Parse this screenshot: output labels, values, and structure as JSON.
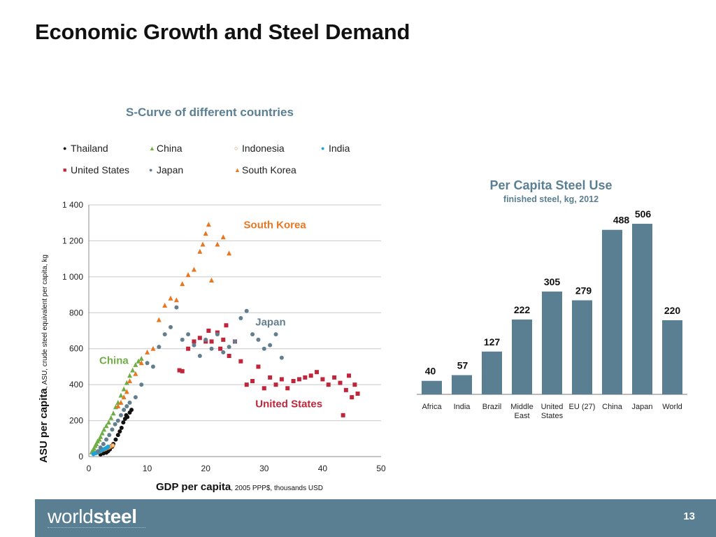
{
  "slide": {
    "title": "Economic Growth and Steel Demand",
    "page_number": "13",
    "logo": {
      "light": "world",
      "bold": "steel"
    }
  },
  "colors": {
    "slate": "#5a7f93",
    "china": "#70ad47",
    "indonesia": "#e07b2a",
    "india": "#1fa3d8",
    "us": "#c0263b",
    "japan": "#637f8f",
    "korea": "#e87722",
    "thailand": "#111111"
  },
  "chart_data": [
    {
      "type": "scatter",
      "title": "S-Curve of different countries",
      "xlabel_bold": "GDP per capita",
      "xlabel_rest": ", 2005 PPP$,  thousands USD",
      "ylabel_bold": "ASU per capita",
      "ylabel_rest": ", ASU, crude steel equivalent per capita, kg",
      "xlim": [
        0,
        50
      ],
      "ylim": [
        0,
        1400
      ],
      "xticks": [
        0,
        10,
        20,
        30,
        40,
        50
      ],
      "yticks": [
        0,
        200,
        400,
        600,
        800,
        1000,
        1200,
        1400
      ],
      "ytick_labels": [
        "0",
        "200",
        "400",
        "600",
        "800",
        "1 000",
        "1 200",
        "1 400"
      ],
      "grid": true,
      "annotations": [
        {
          "text": "South Korea",
          "x": 26.5,
          "y": 1270,
          "color_key": "korea"
        },
        {
          "text": "Japan",
          "x": 28.5,
          "y": 730,
          "color_key": "japan"
        },
        {
          "text": "China",
          "x": 1.8,
          "y": 515,
          "color_key": "china"
        },
        {
          "text": "United States",
          "x": 28.5,
          "y": 275,
          "color_key": "us"
        }
      ],
      "series": [
        {
          "name": "Thailand",
          "marker": "circle",
          "color_key": "thailand",
          "x": [
            2,
            2.5,
            3,
            3.3,
            3.6,
            4,
            4.2,
            4.6,
            5,
            5.3,
            5.6,
            5.9,
            6.2,
            6.4,
            6.6,
            7,
            7.3
          ],
          "y": [
            12,
            18,
            22,
            30,
            40,
            55,
            70,
            95,
            120,
            140,
            160,
            190,
            210,
            230,
            220,
            245,
            260
          ]
        },
        {
          "name": "China",
          "marker": "triangle",
          "color_key": "china",
          "x": [
            0.5,
            0.7,
            0.9,
            1.1,
            1.3,
            1.5,
            1.8,
            2,
            2.3,
            2.6,
            3,
            3.4,
            3.8,
            4.2,
            4.6,
            5,
            5.5,
            6,
            6.5,
            7,
            7.5,
            8,
            8.5,
            9
          ],
          "y": [
            25,
            35,
            45,
            60,
            70,
            85,
            95,
            110,
            130,
            150,
            170,
            190,
            215,
            240,
            275,
            300,
            340,
            375,
            410,
            450,
            480,
            510,
            530,
            545
          ]
        },
        {
          "name": "Indonesia",
          "marker": "circle-open",
          "color_key": "indonesia",
          "x": [
            1.2,
            1.6,
            2,
            2.4,
            2.8,
            3.2,
            3.5,
            3.8,
            4.1
          ],
          "y": [
            20,
            25,
            30,
            38,
            42,
            48,
            52,
            58,
            62
          ]
        },
        {
          "name": "India",
          "marker": "circle",
          "color_key": "india",
          "x": [
            0.8,
            1,
            1.2,
            1.4,
            1.6,
            1.8,
            2,
            2.3,
            2.6,
            3,
            3.3
          ],
          "y": [
            14,
            18,
            20,
            22,
            26,
            28,
            32,
            38,
            42,
            48,
            55
          ]
        },
        {
          "name": "United States",
          "marker": "square",
          "color_key": "us",
          "x": [
            15.5,
            16,
            17,
            18,
            19,
            20,
            20.5,
            21,
            22,
            22.5,
            23,
            23.5,
            24,
            25,
            26,
            27,
            28,
            29,
            30,
            31,
            32,
            33,
            34,
            35,
            36,
            37,
            38,
            39,
            40,
            41,
            42,
            43,
            43.5,
            44,
            44.5,
            45,
            45.5,
            46
          ],
          "y": [
            480,
            475,
            600,
            640,
            660,
            640,
            700,
            640,
            690,
            600,
            650,
            730,
            560,
            640,
            530,
            400,
            420,
            500,
            380,
            440,
            400,
            430,
            380,
            420,
            430,
            440,
            450,
            470,
            430,
            400,
            440,
            410,
            230,
            370,
            450,
            330,
            400,
            350
          ]
        },
        {
          "name": "Japan",
          "marker": "circle",
          "color_key": "japan",
          "x": [
            1.6,
            2,
            2.5,
            3,
            3.5,
            4,
            4.5,
            5,
            5.5,
            6,
            6.5,
            7,
            8,
            9,
            10,
            11,
            12,
            13,
            14,
            15,
            16,
            17,
            18,
            19,
            20,
            21,
            22,
            23,
            24,
            25,
            26,
            27,
            28,
            29,
            30,
            31,
            32,
            33
          ],
          "y": [
            30,
            50,
            70,
            95,
            120,
            150,
            180,
            200,
            230,
            260,
            280,
            300,
            330,
            400,
            520,
            500,
            610,
            680,
            720,
            830,
            650,
            680,
            620,
            560,
            650,
            600,
            680,
            580,
            610,
            640,
            770,
            810,
            680,
            650,
            600,
            620,
            680,
            550
          ]
        },
        {
          "name": "South Korea",
          "marker": "triangle",
          "color_key": "korea",
          "x": [
            5,
            5.5,
            6,
            6.5,
            7,
            8,
            9,
            10,
            11,
            12,
            13,
            14,
            15,
            16,
            17,
            18,
            19,
            19.5,
            20,
            20.5,
            21,
            22,
            23,
            24
          ],
          "y": [
            280,
            300,
            330,
            360,
            420,
            460,
            520,
            580,
            600,
            760,
            840,
            880,
            870,
            960,
            1010,
            1040,
            1140,
            1180,
            1240,
            1290,
            980,
            1180,
            1220,
            1130
          ]
        }
      ]
    },
    {
      "type": "bar",
      "title": "Per Capita Steel Use",
      "subtitle": "finished steel, kg, 2012",
      "categories": [
        [
          "Africa"
        ],
        [
          "India"
        ],
        [
          "Brazil"
        ],
        [
          "Middle",
          "East"
        ],
        [
          "United",
          "States"
        ],
        [
          "EU (27)"
        ],
        [
          "China"
        ],
        [
          "Japan"
        ],
        [
          "World"
        ]
      ],
      "values": [
        40,
        57,
        127,
        222,
        305,
        279,
        488,
        506,
        220
      ],
      "value_labels": [
        "40",
        "57",
        "127",
        "222",
        "305",
        "279",
        "488",
        "506",
        "220"
      ],
      "ylim": [
        0,
        560
      ]
    }
  ]
}
